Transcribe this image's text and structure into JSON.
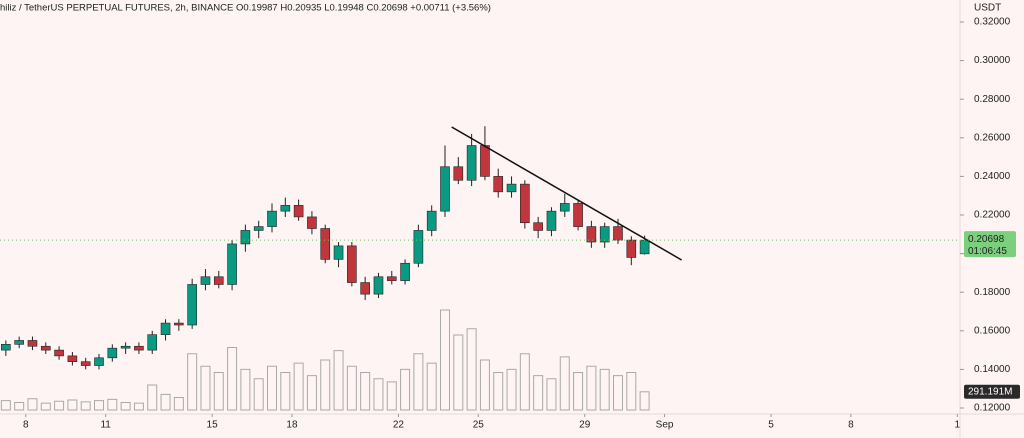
{
  "chart_data": {
    "type": "candlestick",
    "header": "hiliz / TetherUS PERPETUAL FUTURES, 2h, BINANCE  O0.19987 H0.20935 L0.19948 C0.20698 +0.00711 (+3.56%)",
    "y_axis_title": "USDT",
    "up_color": "#0a9a82",
    "down_color": "#c0363c",
    "volume_color": "#a9a9a9",
    "ylim": [
      0.12,
      0.32
    ],
    "yticks": [
      {
        "value": 0.12,
        "label": "0.12000"
      },
      {
        "value": 0.14,
        "label": "0.14000"
      },
      {
        "value": 0.16,
        "label": "0.16000"
      },
      {
        "value": 0.18,
        "label": "0.18000"
      },
      {
        "value": 0.2,
        "label": "0.20000"
      },
      {
        "value": 0.22,
        "label": "0.22000"
      },
      {
        "value": 0.24,
        "label": "0.24000"
      },
      {
        "value": 0.26,
        "label": "0.26000"
      },
      {
        "value": 0.28,
        "label": "0.28000"
      },
      {
        "value": 0.3,
        "label": "0.30000"
      },
      {
        "value": 0.32,
        "label": "0.32000"
      }
    ],
    "xlim": [
      -0.97,
      35.1
    ],
    "xticks": [
      {
        "value": 0,
        "label": "8"
      },
      {
        "value": 3,
        "label": "11"
      },
      {
        "value": 7,
        "label": "15"
      },
      {
        "value": 10,
        "label": "18"
      },
      {
        "value": 14,
        "label": "22"
      },
      {
        "value": 17,
        "label": "25"
      },
      {
        "value": 21,
        "label": "29"
      },
      {
        "value": 24,
        "label": "Sep"
      },
      {
        "value": 28,
        "label": "5"
      },
      {
        "value": 31,
        "label": "8"
      },
      {
        "value": 35,
        "label": "1"
      }
    ],
    "x": [
      -0.75,
      -0.25,
      0.25,
      0.75,
      1.25,
      1.75,
      2.25,
      2.75,
      3.25,
      3.75,
      4.25,
      4.75,
      5.25,
      5.75,
      6.25,
      6.75,
      7.25,
      7.75,
      8.25,
      8.75,
      9.25,
      9.75,
      10.25,
      10.75,
      11.25,
      11.75,
      12.25,
      12.75,
      13.25,
      13.75,
      14.25,
      14.75,
      15.25,
      15.75,
      16.25,
      16.75,
      17.25,
      17.75,
      18.25,
      18.75,
      19.25,
      19.75,
      20.25,
      20.75,
      21.25,
      21.75,
      22.25,
      22.75,
      23.25
    ],
    "open": [
      0.15,
      0.153,
      0.155,
      0.152,
      0.15,
      0.147,
      0.144,
      0.142,
      0.146,
      0.151,
      0.152,
      0.15,
      0.158,
      0.164,
      0.163,
      0.184,
      0.188,
      0.184,
      0.205,
      0.212,
      0.214,
      0.222,
      0.225,
      0.219,
      0.213,
      0.197,
      0.204,
      0.185,
      0.179,
      0.188,
      0.186,
      0.195,
      0.212,
      0.222,
      0.245,
      0.238,
      0.256,
      0.24,
      0.232,
      0.236,
      0.216,
      0.212,
      0.222,
      0.226,
      0.214,
      0.206,
      0.214,
      0.207,
      0.19987
    ],
    "high": [
      0.155,
      0.157,
      0.157,
      0.154,
      0.152,
      0.149,
      0.146,
      0.148,
      0.153,
      0.154,
      0.154,
      0.16,
      0.166,
      0.166,
      0.187,
      0.192,
      0.191,
      0.207,
      0.215,
      0.217,
      0.226,
      0.229,
      0.228,
      0.222,
      0.215,
      0.206,
      0.206,
      0.188,
      0.19,
      0.191,
      0.197,
      0.215,
      0.225,
      0.256,
      0.25,
      0.262,
      0.266,
      0.244,
      0.24,
      0.238,
      0.219,
      0.224,
      0.231,
      0.228,
      0.217,
      0.216,
      0.218,
      0.209,
      0.20935
    ],
    "low": [
      0.147,
      0.151,
      0.15,
      0.148,
      0.145,
      0.142,
      0.14,
      0.14,
      0.144,
      0.148,
      0.148,
      0.148,
      0.155,
      0.16,
      0.161,
      0.181,
      0.182,
      0.181,
      0.201,
      0.208,
      0.211,
      0.219,
      0.217,
      0.21,
      0.195,
      0.193,
      0.183,
      0.176,
      0.177,
      0.184,
      0.184,
      0.193,
      0.209,
      0.219,
      0.236,
      0.235,
      0.238,
      0.229,
      0.229,
      0.213,
      0.208,
      0.209,
      0.219,
      0.212,
      0.203,
      0.203,
      0.205,
      0.194,
      0.19948
    ],
    "close": [
      0.153,
      0.155,
      0.152,
      0.15,
      0.147,
      0.144,
      0.142,
      0.146,
      0.151,
      0.152,
      0.15,
      0.158,
      0.164,
      0.163,
      0.184,
      0.188,
      0.184,
      0.205,
      0.212,
      0.214,
      0.222,
      0.225,
      0.219,
      0.213,
      0.197,
      0.204,
      0.185,
      0.179,
      0.188,
      0.186,
      0.195,
      0.212,
      0.222,
      0.245,
      0.238,
      0.256,
      0.24,
      0.232,
      0.236,
      0.216,
      0.212,
      0.222,
      0.226,
      0.214,
      0.206,
      0.214,
      0.207,
      0.198,
      0.20698
    ],
    "volume": [
      150,
      120,
      180,
      110,
      140,
      160,
      130,
      150,
      170,
      120,
      110,
      400,
      250,
      200,
      900,
      700,
      600,
      1000,
      650,
      500,
      700,
      600,
      750,
      550,
      800,
      950,
      700,
      600,
      500,
      450,
      650,
      900,
      750,
      1600,
      1200,
      1300,
      800,
      600,
      650,
      900,
      550,
      500,
      850,
      600,
      700,
      650,
      550,
      600,
      291.191
    ],
    "current_volume": {
      "value": 291.191,
      "label": "291.191M"
    },
    "last_price": 0.20698,
    "countdown": "01:06:45",
    "trendline": {
      "x": [
        16.0,
        24.64
      ],
      "y": [
        0.2656,
        0.1967
      ]
    }
  }
}
